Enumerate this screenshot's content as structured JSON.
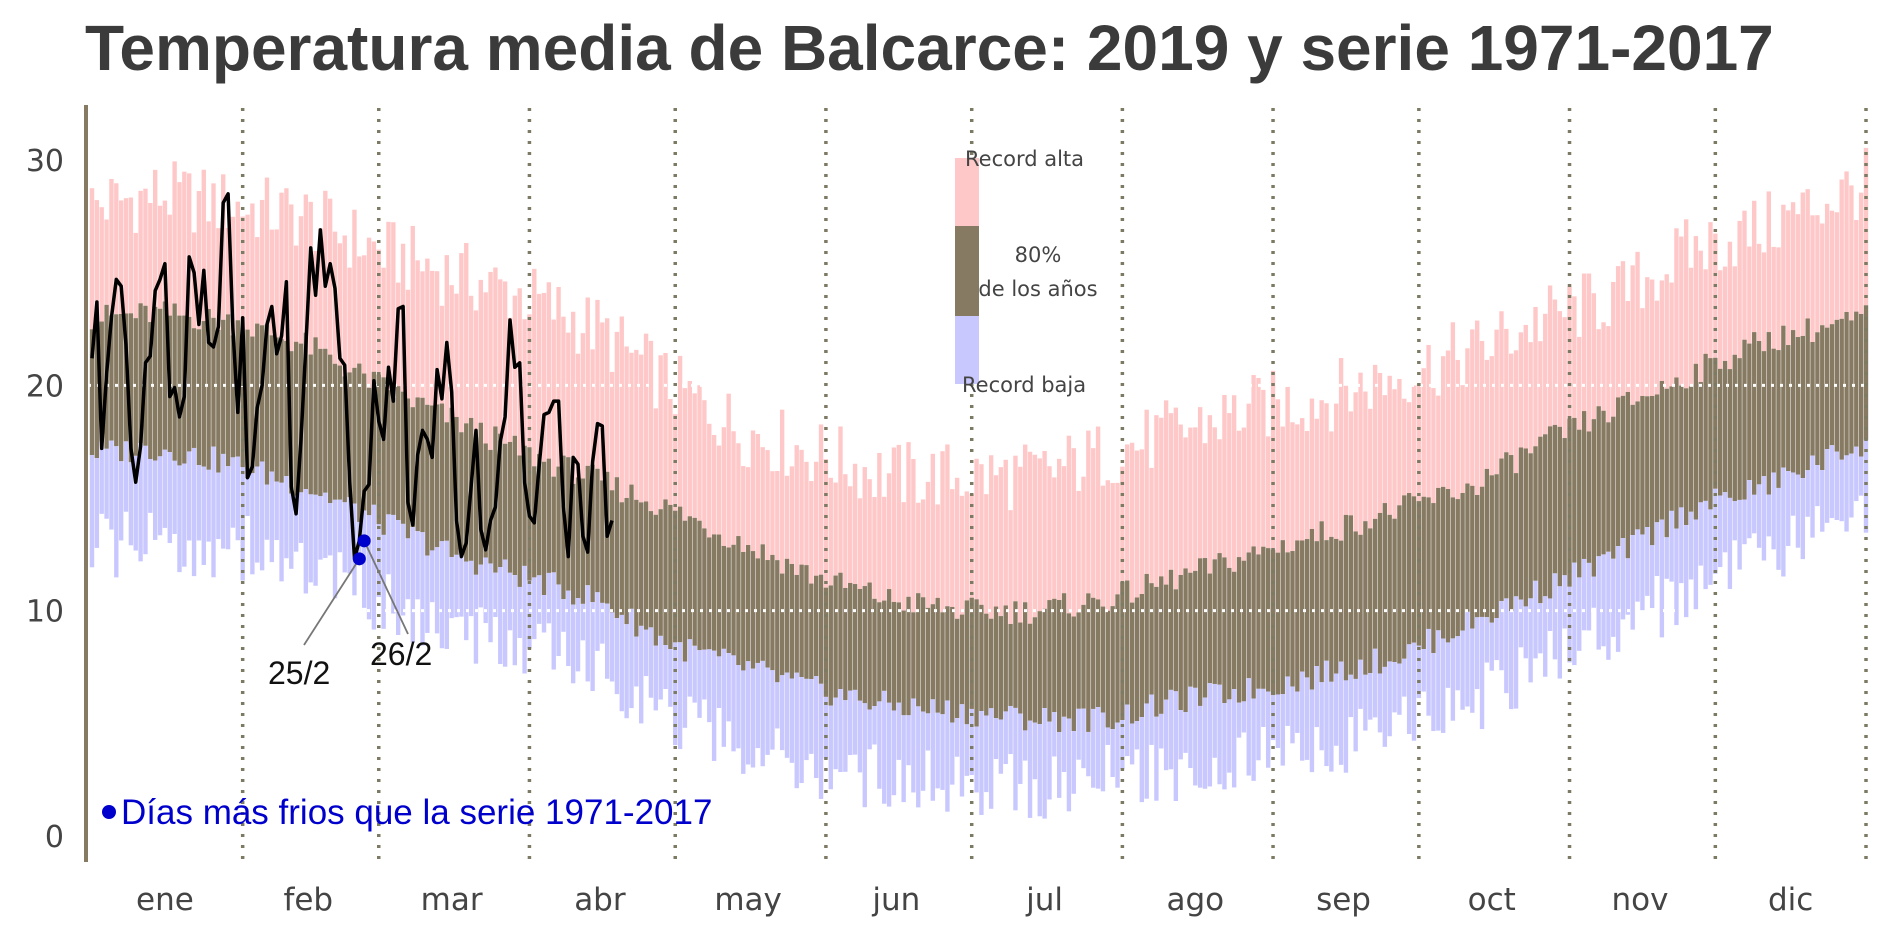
{
  "chart_data": {
    "type": "bar",
    "title": "Temperatura media de Balcarce: 2019 y serie 1971-2017",
    "xlabel": "",
    "ylabel": "",
    "ylim": [
      0,
      32
    ],
    "yticks": [
      0,
      10,
      20,
      30
    ],
    "x_unit": "day of year",
    "xlim": [
      1,
      366
    ],
    "month_labels": [
      "ene",
      "feb",
      "mar",
      "abr",
      "may",
      "jun",
      "jul",
      "ago",
      "sep",
      "oct",
      "nov",
      "dic"
    ],
    "month_start_days": [
      1,
      32,
      60,
      91,
      121,
      152,
      182,
      213,
      244,
      274,
      305,
      335
    ],
    "grid": "dotted horizontal lines at 10 and 20; dotted vertical lines at month boundaries",
    "colors": {
      "record_high": "#ffc8c8",
      "band_80": "#877a62",
      "record_low": "#c8c8ff",
      "series_2019": "#000000",
      "cold_days": "#0000cc",
      "axis": "#877a62",
      "gridline": "#7d7a63",
      "title": "#3b3b3b"
    },
    "climatology": {
      "anchor_days": [
        1,
        15,
        30,
        45,
        60,
        75,
        90,
        105,
        120,
        135,
        150,
        165,
        180,
        195,
        210,
        225,
        240,
        255,
        270,
        285,
        300,
        315,
        330,
        345,
        366
      ],
      "record_high": [
        27.5,
        28.0,
        27.5,
        27.0,
        25.5,
        24.5,
        23.5,
        22.0,
        19.5,
        17.5,
        16.5,
        15.5,
        15.5,
        15.5,
        16.5,
        17.5,
        18.5,
        19.0,
        20.0,
        21.0,
        22.5,
        23.5,
        25.5,
        26.5,
        28.5
      ],
      "p90": [
        23.0,
        23.2,
        22.8,
        21.8,
        20.0,
        18.5,
        17.0,
        15.8,
        14.5,
        13.0,
        11.5,
        10.5,
        10.0,
        10.0,
        10.5,
        11.5,
        12.5,
        13.5,
        14.5,
        15.5,
        17.5,
        19.0,
        20.5,
        22.0,
        23.0
      ],
      "p10": [
        17.0,
        17.2,
        16.5,
        15.5,
        14.0,
        12.5,
        11.5,
        10.5,
        8.5,
        7.5,
        6.5,
        5.8,
        5.5,
        5.2,
        5.2,
        6.0,
        6.5,
        7.2,
        8.0,
        9.5,
        11.0,
        12.5,
        14.5,
        15.5,
        17.5
      ],
      "record_low": [
        13.5,
        13.5,
        13.5,
        12.5,
        11.0,
        9.5,
        9.0,
        8.0,
        6.0,
        4.5,
        3.5,
        3.2,
        3.0,
        2.8,
        3.2,
        3.5,
        4.0,
        4.5,
        5.5,
        6.5,
        8.5,
        10.0,
        11.5,
        13.0,
        14.5
      ]
    },
    "series_2019": {
      "name": "",
      "x": [
        1,
        2,
        3,
        4,
        5,
        6,
        7,
        8,
        9,
        10,
        11,
        12,
        13,
        14,
        15,
        16,
        17,
        18,
        19,
        20,
        21,
        22,
        23,
        24,
        25,
        26,
        27,
        28,
        29,
        30,
        31,
        32,
        33,
        34,
        35,
        36,
        37,
        38,
        39,
        40,
        41,
        42,
        43,
        44,
        45,
        46,
        47,
        48,
        49,
        50,
        51,
        52,
        53,
        54,
        55,
        56,
        57,
        58,
        59,
        60,
        61,
        62,
        63,
        64,
        65,
        66,
        67,
        68,
        69,
        70,
        71,
        72,
        73,
        74,
        75,
        76,
        77,
        78,
        79,
        80,
        81,
        82,
        83,
        84,
        85,
        86,
        87,
        88,
        89,
        90,
        91,
        92,
        93,
        94,
        95,
        96,
        97,
        98,
        99,
        100,
        101,
        102,
        103,
        104,
        105,
        106,
        107,
        108
      ],
      "y": [
        21.2,
        23.7,
        17.2,
        20.5,
        23.0,
        24.7,
        24.4,
        21.8,
        17.2,
        15.7,
        17.3,
        21.0,
        21.3,
        24.2,
        24.7,
        25.4,
        19.5,
        19.9,
        18.6,
        19.5,
        25.7,
        25.0,
        22.7,
        25.1,
        21.9,
        21.7,
        22.6,
        28.1,
        28.5,
        22.5,
        18.8,
        23.0,
        15.9,
        16.4,
        19.0,
        20.0,
        22.7,
        23.5,
        21.4,
        22.2,
        24.6,
        15.5,
        14.3,
        17.6,
        21.8,
        26.1,
        24.0,
        26.9,
        24.4,
        25.4,
        24.3,
        21.2,
        20.9,
        15.8,
        12.3,
        13.1,
        15.3,
        15.6,
        20.2,
        18.4,
        17.6,
        20.8,
        19.3,
        23.4,
        23.5,
        14.8,
        13.8,
        16.9,
        18.0,
        17.6,
        16.8,
        20.7,
        19.4,
        21.9,
        19.7,
        14.0,
        12.4,
        13.0,
        15.5,
        18.0,
        13.6,
        12.7,
        14.0,
        14.6,
        17.5,
        18.6,
        22.9,
        20.8,
        21.0,
        15.7,
        14.2,
        13.9,
        16.4,
        18.7,
        18.8,
        19.3,
        19.3,
        14.6,
        12.4,
        16.8,
        16.5,
        13.3,
        12.6,
        16.6,
        18.3,
        18.2,
        13.3,
        14.0
      ]
    },
    "cold_days": [
      {
        "x": 56,
        "y": 12.3,
        "label": "25/2"
      },
      {
        "x": 57,
        "y": 13.1,
        "label": "26/2"
      }
    ],
    "legend": {
      "record_high_label": "Record alta",
      "band_label_line1": "80%",
      "band_label_line2": "de los años",
      "record_low_label": "Record baja"
    },
    "note": "Días más frios que la serie 1971-2017"
  }
}
